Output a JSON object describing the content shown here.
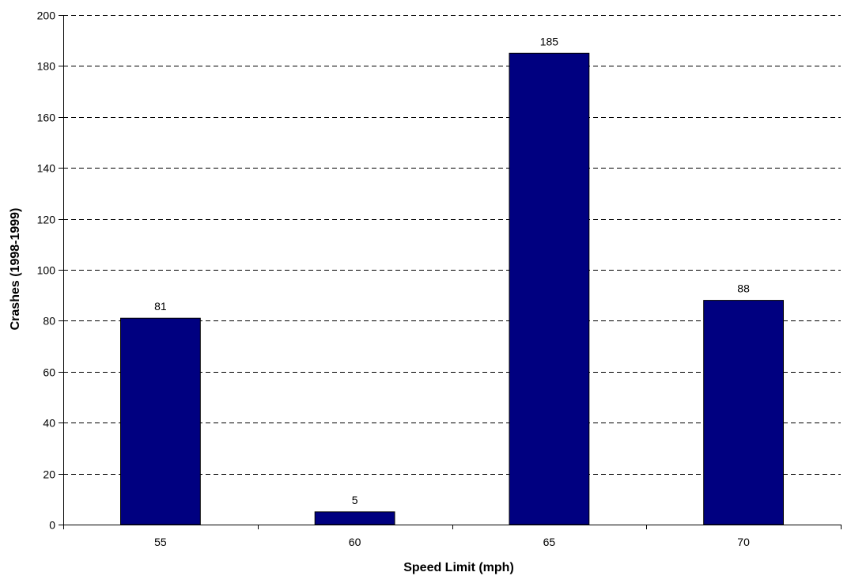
{
  "chart_data": {
    "type": "bar",
    "title": "",
    "xlabel": "Speed Limit (mph)",
    "ylabel": "Crashes (1998-1999)",
    "categories": [
      "55",
      "60",
      "65",
      "70"
    ],
    "values": [
      81,
      5,
      185,
      88
    ],
    "data_labels": [
      "81",
      "5",
      "185",
      "88"
    ],
    "ylim": [
      0,
      200
    ],
    "ytick_values": [
      0,
      20,
      40,
      60,
      80,
      100,
      120,
      140,
      160,
      180,
      200
    ],
    "ytick_labels": [
      "0",
      "20",
      "40",
      "60",
      "80",
      "100",
      "120",
      "140",
      "160",
      "180",
      "200"
    ],
    "grid": "horizontal dashed",
    "legend": "none",
    "colors": {
      "bar_fill": "#000080",
      "bar_stroke": "#000000",
      "grid": "#000000",
      "axis": "#000000"
    }
  }
}
